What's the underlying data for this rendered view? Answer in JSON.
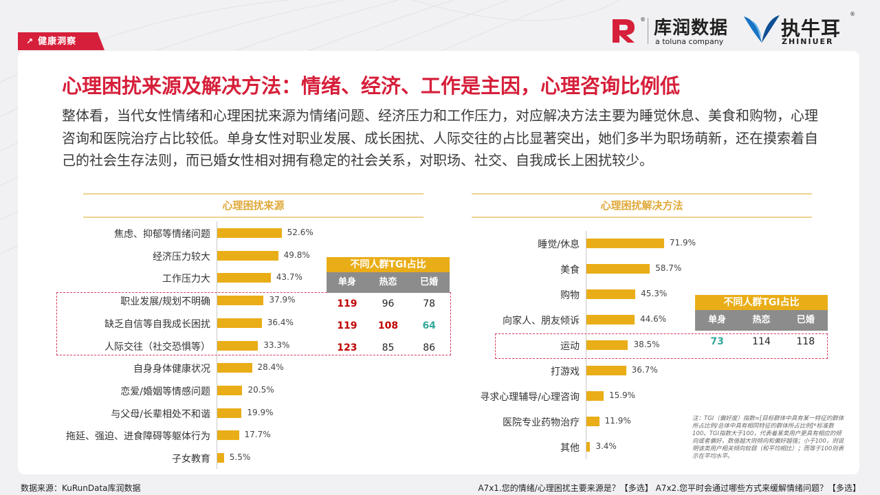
{
  "tag": "健康洞察",
  "brand": {
    "kurun_name": "库润数据",
    "kurun_sub": "a toluna company",
    "zhiniuer_name": "执牛耳",
    "zhiniuer_en": "ZHINIUER",
    "registered": "®"
  },
  "title": "心理困扰来源及解决方法：情绪、经济、工作是主因，心理咨询比例低",
  "summary": "整体看，当代女性情绪和心理困扰来源为情绪问题、经济压力和工作压力，对应解决方法主要为睡觉休息、美食和购物，心理咨询和医院治疗占比较低。单身女性对职业发展、成长困扰、人际交往的占比显著突出，她们多半为职场萌新，还在摸索着自己的社会生存法则，而已婚女性相对拥有稳定的社会关系，对职场、社交、自我成长上困扰较少。",
  "colors": {
    "accent": "#d61f3a",
    "bar": "#e9ad17",
    "highlight": "#c00000",
    "low": "#33a89a"
  },
  "chart_data": [
    {
      "type": "bar",
      "orientation": "horizontal",
      "title": "心理困扰来源",
      "unit": "%",
      "categories": [
        "焦虑、抑郁等情绪问题",
        "经济压力较大",
        "工作压力大",
        "职业发展/规划不明确",
        "缺乏自信等自我成长困扰",
        "人际交往（社交恐惧等）",
        "自身身体健康状况",
        "恋爱/婚姻等情感问题",
        "与父母/长辈相处不和谐",
        "拖延、强迫、进食障碍等躯体行为",
        "子女教育"
      ],
      "values": [
        52.6,
        49.8,
        43.7,
        37.9,
        36.4,
        33.3,
        28.4,
        20.5,
        19.9,
        17.7,
        5.5
      ],
      "labels": [
        "52.6%",
        "49.8%",
        "43.7%",
        "37.9%",
        "36.4%",
        "33.3%",
        "28.4%",
        "20.5%",
        "19.9%",
        "17.7%",
        "5.5%"
      ],
      "xlim": [
        0,
        100
      ],
      "highlighted": [
        "职业发展/规划不明确",
        "缺乏自信等自我成长困扰",
        "人际交往（社交恐惧等）"
      ]
    },
    {
      "type": "bar",
      "orientation": "horizontal",
      "title": "心理困扰解决方法",
      "unit": "%",
      "categories": [
        "睡觉/休息",
        "美食",
        "购物",
        "向家人、朋友倾诉",
        "运动",
        "打游戏",
        "寻求心理辅导/心理咨询",
        "医院专业药物治疗",
        "其他"
      ],
      "values": [
        71.9,
        58.7,
        45.3,
        44.6,
        38.5,
        36.7,
        15.9,
        11.9,
        3.4
      ],
      "labels": [
        "71.9%",
        "58.7%",
        "45.3%",
        "44.6%",
        "38.5%",
        "36.7%",
        "15.9%",
        "11.9%",
        "3.4%"
      ],
      "xlim": [
        0,
        100
      ],
      "highlighted": [
        "运动"
      ]
    }
  ],
  "tgi_left": {
    "title": "不同人群TGI占比",
    "headers": [
      "单身",
      "热恋",
      "已婚"
    ],
    "rows": [
      [
        {
          "v": "119",
          "s": "hi"
        },
        {
          "v": "96",
          "s": ""
        },
        {
          "v": "78",
          "s": ""
        }
      ],
      [
        {
          "v": "119",
          "s": "hi"
        },
        {
          "v": "108",
          "s": "hi"
        },
        {
          "v": "64",
          "s": "lo"
        }
      ],
      [
        {
          "v": "123",
          "s": "hi"
        },
        {
          "v": "85",
          "s": ""
        },
        {
          "v": "86",
          "s": ""
        }
      ]
    ]
  },
  "tgi_right": {
    "title": "不同人群TGI占比",
    "headers": [
      "单身",
      "热恋",
      "已婚"
    ],
    "rows": [
      [
        {
          "v": "73",
          "s": "lo"
        },
        {
          "v": "114",
          "s": ""
        },
        {
          "v": "118",
          "s": ""
        }
      ]
    ]
  },
  "note": "注：TGI（偏好度）指数=[目标群体中具有某一特征的群体所占比例/总体中具有相同特征的群体所占比例]*标准数100。TGI指数大于100，代表着某类用户更具有相应的倾向或者偏好，数值越大则倾向和偏好越强；小于100，则说明该类用户相关倾向较弱（和平均相比）；而等于100则表示在平均水平。",
  "footer": {
    "source": "数据来源：KuRunData库润数据",
    "questions": "A7x1.您的情绪/心理困扰主要来源是？【多选】 A7x2.您平时会通过哪些方式来缓解情绪问题？【多选】"
  }
}
